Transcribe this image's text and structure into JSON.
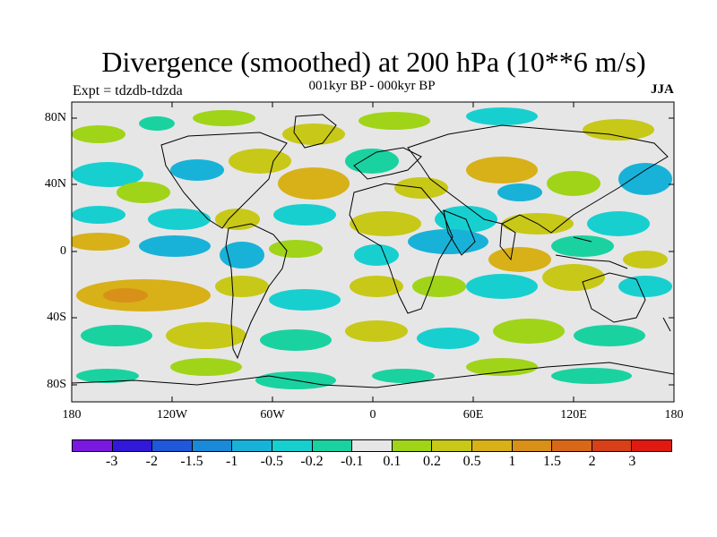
{
  "header": {
    "title": "Divergence (smoothed) at 200 hPa (10**6 m/s)",
    "subtitle": "001kyr BP - 000kyr BP",
    "experiment": "Expt = tdzdb-tdzda",
    "season": "JJA"
  },
  "axes": {
    "lat_labels": [
      "80N",
      "40N",
      "0",
      "40S",
      "80S"
    ],
    "lon_labels": [
      "180",
      "120W",
      "60W",
      "0",
      "60E",
      "120E",
      "180"
    ]
  },
  "colorbar": {
    "colors": [
      "#7a18e0",
      "#3218d8",
      "#1f58d8",
      "#1a8ad8",
      "#18b2d8",
      "#18cfd0",
      "#1ad2a0",
      "#e6e6e6",
      "#a0d418",
      "#c8c818",
      "#d8b018",
      "#d89018",
      "#d86818",
      "#d84018",
      "#e01a10"
    ],
    "labels": [
      "-3",
      "-2",
      "-1.5",
      "-1",
      "-0.5",
      "-0.2",
      "-0.1",
      "0.1",
      "0.2",
      "0.5",
      "1",
      "1.5",
      "2",
      "3"
    ]
  },
  "map": {
    "background_color": "#e6e6e6",
    "field_color_positive": "#c8c818",
    "field_color_negative": "#18b2d8"
  }
}
